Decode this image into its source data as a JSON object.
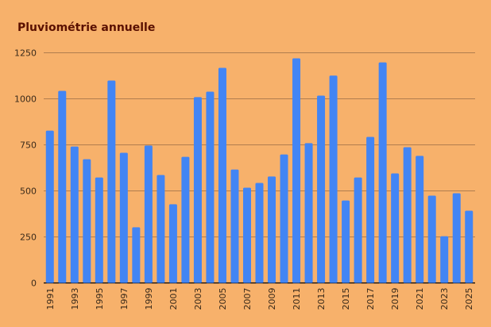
{
  "chart_data": {
    "type": "bar",
    "title": "Pluviométrie annuelle",
    "xlabel": "",
    "ylabel": "",
    "ylim": [
      0,
      1250
    ],
    "yticks": [
      0,
      250,
      500,
      750,
      1000,
      1250
    ],
    "grid": true,
    "categories": [
      "1991",
      "1992",
      "1993",
      "1994",
      "1995",
      "1996",
      "1997",
      "1998",
      "1999",
      "2000",
      "2001",
      "2002",
      "2003",
      "2004",
      "2005",
      "2006",
      "2007",
      "2008",
      "2009",
      "2010",
      "2011",
      "2012",
      "2013",
      "2014",
      "2015",
      "2016",
      "2017",
      "2018",
      "2019",
      "2020",
      "2021",
      "2022",
      "2023",
      "2024",
      "2025"
    ],
    "xtick_labels": [
      "1991",
      "1993",
      "1995",
      "1997",
      "1999",
      "2001",
      "2003",
      "2005",
      "2007",
      "2009",
      "2011",
      "2013",
      "2015",
      "2017",
      "2019",
      "2021",
      "2023",
      "2025"
    ],
    "values": [
      827,
      1043,
      741,
      672,
      573,
      1099,
      707,
      302,
      746,
      586,
      427,
      685,
      1009,
      1039,
      1168,
      616,
      517,
      543,
      578,
      698,
      1220,
      759,
      1017,
      1126,
      448,
      573,
      793,
      1198,
      595,
      737,
      690,
      474,
      254,
      487,
      392
    ],
    "colors": {
      "background": "#f7b16b",
      "bar": "#4285f4",
      "grid": "#b07d4e",
      "title": "#5a1000"
    }
  }
}
